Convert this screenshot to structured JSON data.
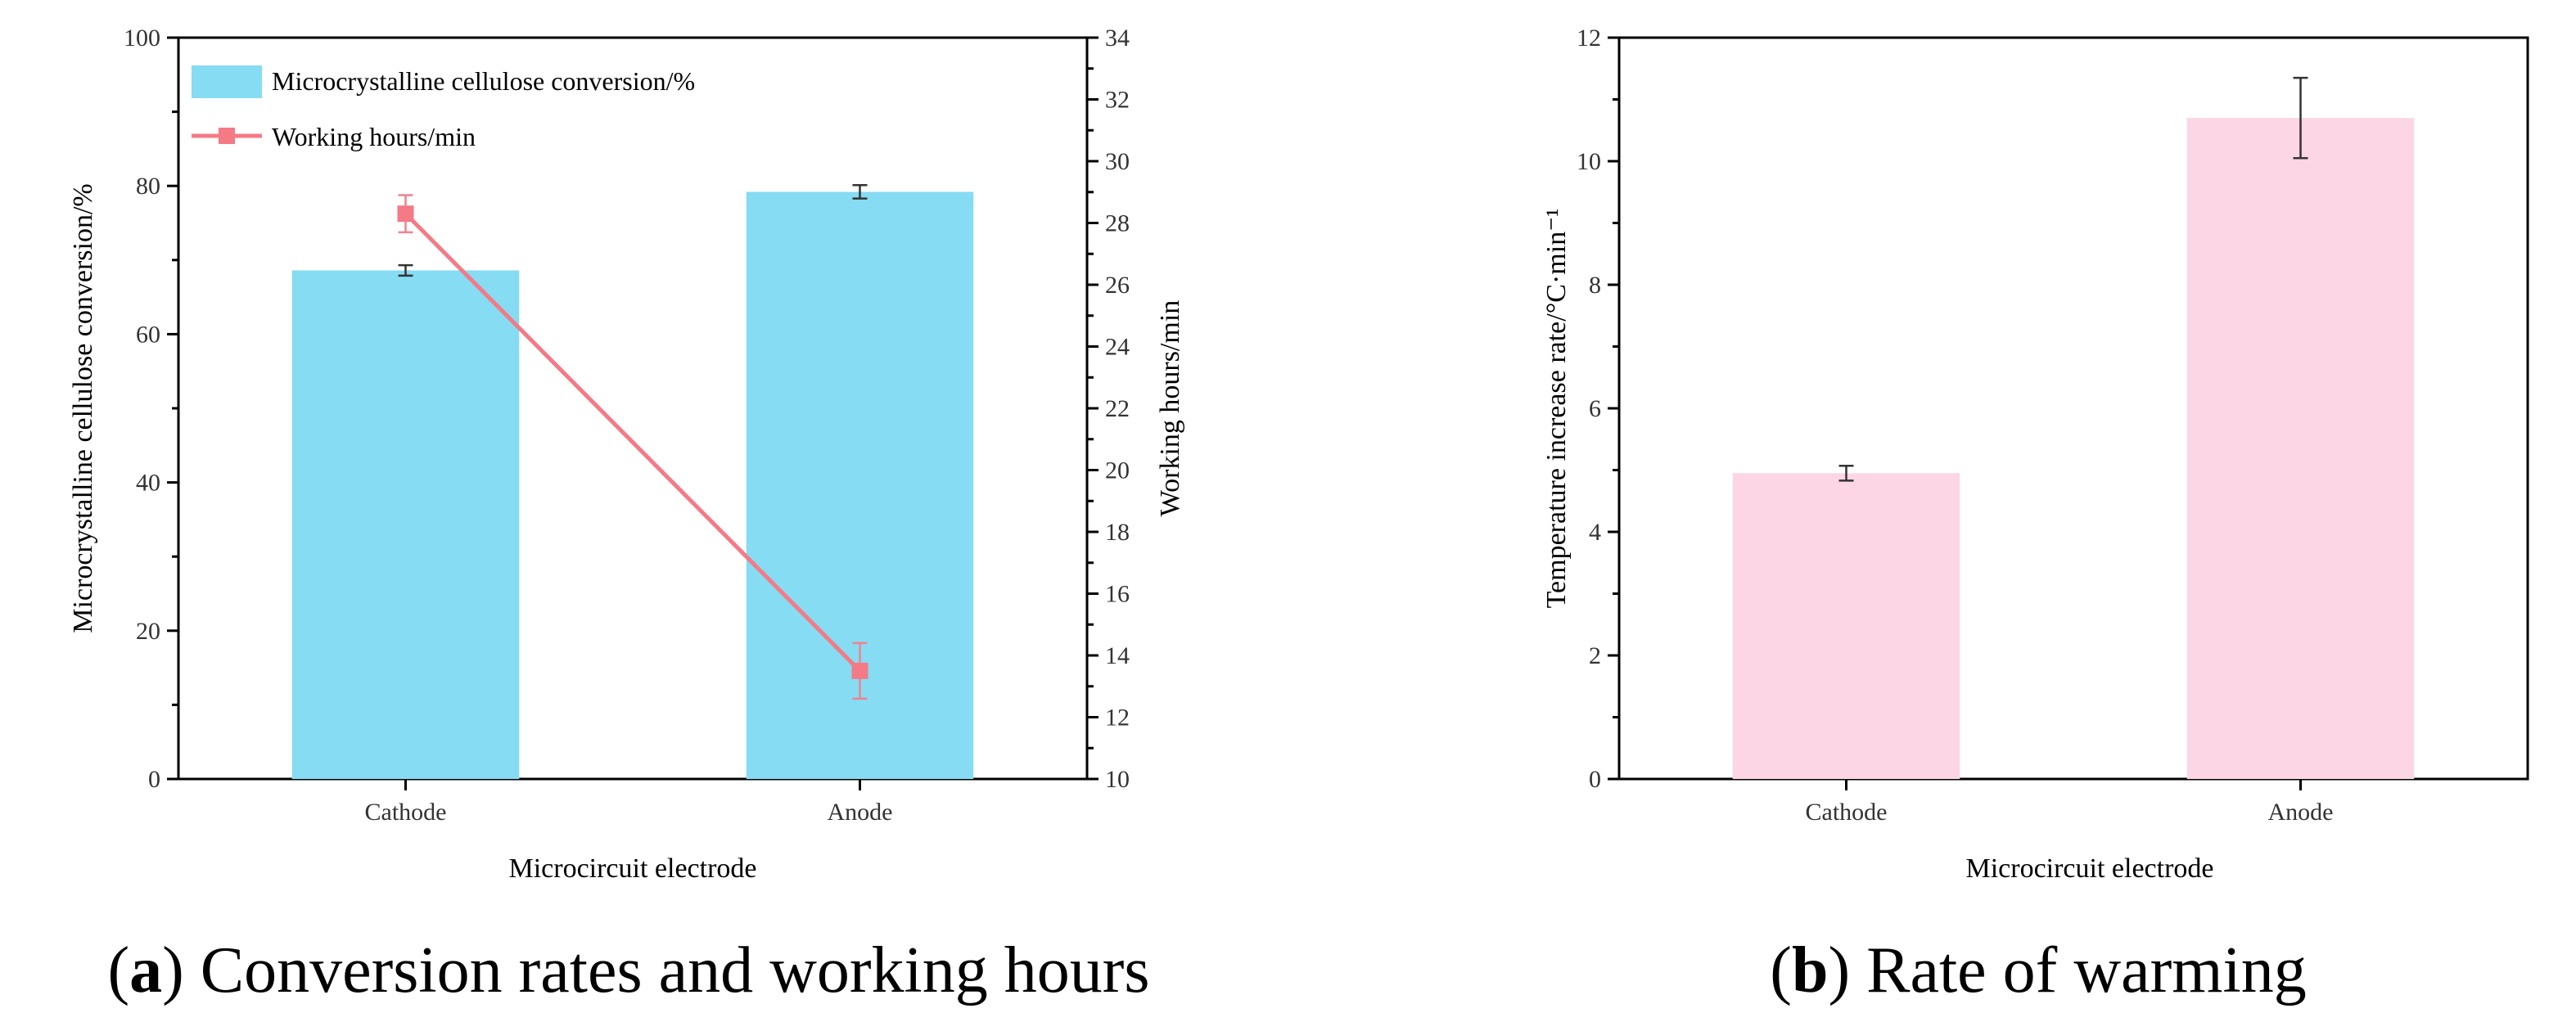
{
  "chart_data": [
    {
      "id": "a",
      "type": "bar",
      "categories": [
        "Cathode",
        "Anode"
      ],
      "xlabel": "Microcircuit electrode",
      "ylabel": "Microcrystalline cellulose conversion/%",
      "ylim": [
        0,
        100
      ],
      "yticks": [
        0,
        20,
        40,
        60,
        80,
        100
      ],
      "y2label": "Working hours/min",
      "y2lim": [
        10,
        34
      ],
      "y2ticks": [
        10,
        12,
        14,
        16,
        18,
        20,
        22,
        24,
        26,
        28,
        30,
        32,
        34
      ],
      "legend_position": "top-left",
      "series": [
        {
          "name": "Microcrystalline cellulose conversion/%",
          "type": "bar",
          "axis": "left",
          "color": "#86dcf2",
          "values": [
            68.6,
            79.2
          ],
          "errors": [
            0.7,
            0.9
          ]
        },
        {
          "name": "Working hours/min",
          "type": "line",
          "axis": "right",
          "color": "#f47a86",
          "marker": "square",
          "values": [
            28.3,
            13.5
          ],
          "errors": [
            0.6,
            0.9
          ]
        }
      ],
      "caption_letter": "a",
      "caption_text": "Conversion rates and working hours"
    },
    {
      "id": "b",
      "type": "bar",
      "categories": [
        "Cathode",
        "Anode"
      ],
      "xlabel": "Microcircuit electrode",
      "ylabel": "Temperature increase rate/°C·min⁻¹",
      "ylim": [
        0,
        12
      ],
      "yticks": [
        0,
        2,
        4,
        6,
        8,
        10,
        12
      ],
      "series": [
        {
          "type": "bar",
          "color": "#fdd6e5",
          "values": [
            4.95,
            10.7
          ],
          "errors": [
            0.12,
            0.65
          ]
        }
      ],
      "caption_letter": "b",
      "caption_text": "Rate of warming"
    }
  ]
}
